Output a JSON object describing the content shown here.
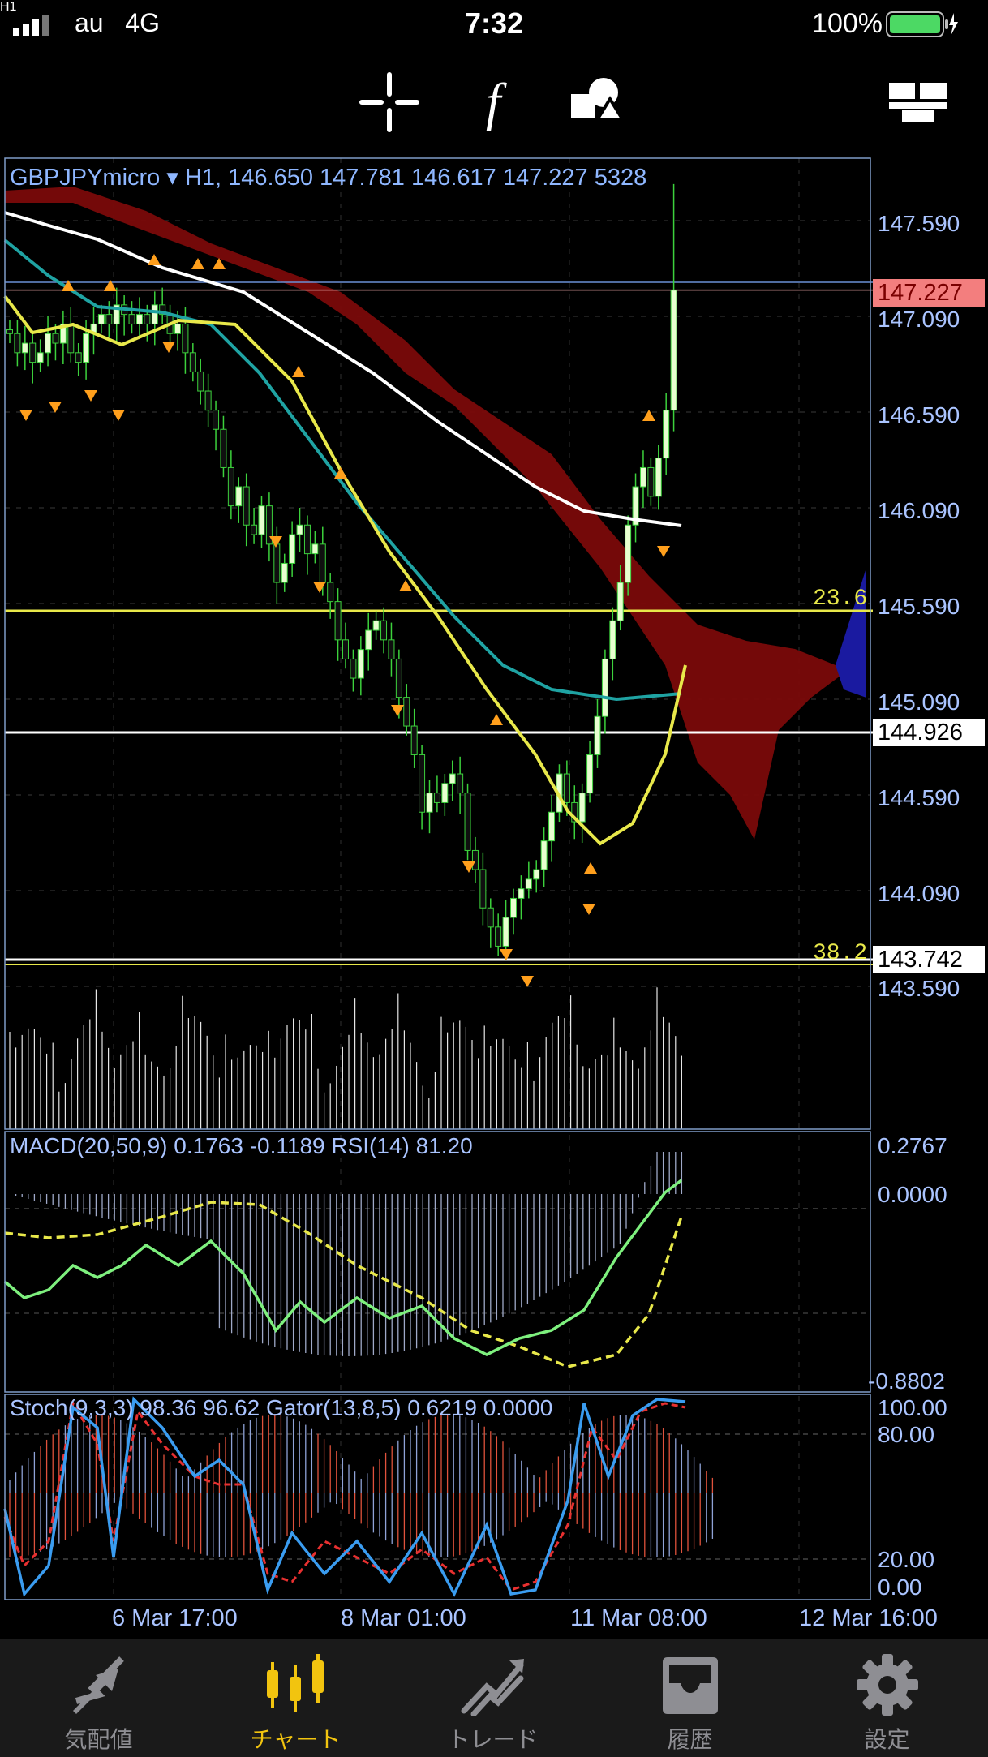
{
  "status_bar": {
    "carrier": "au",
    "network": "4G",
    "time": "7:32",
    "battery": "100%"
  },
  "toolbar": {
    "timeframe": "H1",
    "icons": [
      "crosshair-icon",
      "function-icon",
      "objects-icon",
      "windows-icon"
    ]
  },
  "chart": {
    "header": "GBPJPYmicro ▾ H1, 146.650 147.781 146.617 147.227 5328",
    "price_axis": [
      "147.590",
      "147.090",
      "146.590",
      "146.090",
      "145.590",
      "145.090",
      "144.590",
      "144.090",
      "143.590"
    ],
    "price_tags": {
      "current": "147.227",
      "line1": "144.926",
      "line2": "143.742"
    },
    "fib_labels": [
      "23.6",
      "38.2"
    ],
    "macd_header": "MACD(20,50,9) 0.1763 -0.1189 RSI(14) 81.20",
    "macd_axis": [
      "0.2767",
      "0.0000",
      "-0.8802"
    ],
    "stoch_header": "Stoch(9,3,3) 98.36 96.62 Gator(13,8,5) 0.6219 0.0000",
    "stoch_axis": [
      "100.00",
      "80.00",
      "20.00",
      "0.00"
    ],
    "time_axis": [
      "6 Mar 17:00",
      "8 Mar 01:00",
      "11 Mar 08:00",
      "12 Mar 16:00"
    ],
    "colors": {
      "bull": "#e8ffd0",
      "bear": "#0f0f0f",
      "ma_fast": "#e8e84a",
      "ma_mid": "#1fa3a3",
      "ma_slow": "#dddddd",
      "cloud": "#7a0a0a",
      "fib": "#e8e84a",
      "accent_tag": "#f37e7e"
    }
  },
  "tabbar": {
    "items": [
      {
        "label": "気配値",
        "icon": "quotes-icon"
      },
      {
        "label": "チャート",
        "icon": "chart-icon"
      },
      {
        "label": "トレード",
        "icon": "trade-icon"
      },
      {
        "label": "履歴",
        "icon": "history-icon"
      },
      {
        "label": "設定",
        "icon": "settings-icon"
      }
    ],
    "active": "チャート"
  }
}
